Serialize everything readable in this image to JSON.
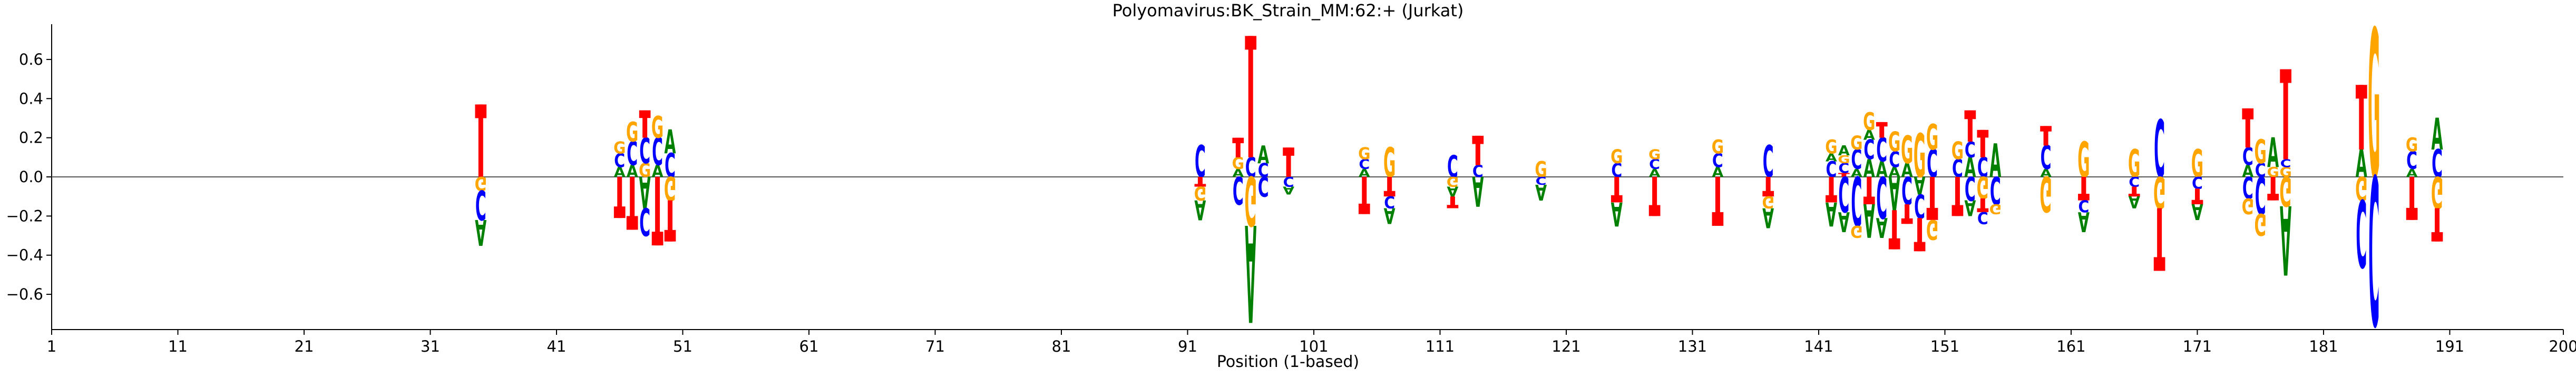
{
  "chart_data": {
    "type": "sequence-logo",
    "title": "Polyomavirus:BK_Strain_MM:62:+  (Jurkat)",
    "xlabel": "Position (1-based)",
    "ylabel": "",
    "xlim": [
      1,
      200
    ],
    "ylim": [
      -0.78,
      0.78
    ],
    "x_ticks": [
      1,
      11,
      21,
      31,
      41,
      51,
      61,
      71,
      81,
      91,
      101,
      111,
      121,
      131,
      141,
      151,
      161,
      171,
      181,
      191,
      200
    ],
    "y_ticks": [
      -0.6,
      -0.4,
      -0.2,
      0.0,
      0.2,
      0.4,
      0.6
    ],
    "y_tick_labels": [
      "−0.6",
      "−0.4",
      "−0.2",
      "0.0",
      "0.2",
      "0.4",
      "0.6"
    ],
    "colors": {
      "A": "#008000",
      "C": "#0000ff",
      "G": "#ffa500",
      "T": "#ff0000"
    },
    "positions": [
      {
        "x": 35,
        "up": [
          [
            "T",
            0.37
          ]
        ],
        "down": [
          [
            "G",
            0.07
          ],
          [
            "C",
            0.15
          ],
          [
            "A",
            0.13
          ]
        ]
      },
      {
        "x": 46,
        "up": [
          [
            "A",
            0.05
          ],
          [
            "C",
            0.07
          ],
          [
            "G",
            0.06
          ]
        ],
        "down": [
          [
            "T",
            0.21
          ]
        ]
      },
      {
        "x": 47,
        "up": [
          [
            "A",
            0.06
          ],
          [
            "C",
            0.12
          ],
          [
            "G",
            0.1
          ]
        ],
        "down": [
          [
            "T",
            0.27
          ]
        ]
      },
      {
        "x": 48,
        "up": [
          [
            "G",
            0.07
          ],
          [
            "C",
            0.13
          ],
          [
            "T",
            0.14
          ]
        ],
        "down": [
          [
            "A",
            0.16
          ],
          [
            "C",
            0.14
          ]
        ]
      },
      {
        "x": 49,
        "up": [
          [
            "A",
            0.06
          ],
          [
            "C",
            0.14
          ],
          [
            "G",
            0.11
          ]
        ],
        "down": [
          [
            "T",
            0.35
          ]
        ]
      },
      {
        "x": 50,
        "up": [
          [
            "C",
            0.12
          ],
          [
            "A",
            0.12
          ]
        ],
        "down": [
          [
            "G",
            0.12
          ],
          [
            "T",
            0.21
          ]
        ]
      },
      {
        "x": 92,
        "up": [
          [
            "C",
            0.16
          ]
        ],
        "down": [
          [
            "T",
            0.05
          ],
          [
            "G",
            0.07
          ],
          [
            "A",
            0.1
          ]
        ]
      },
      {
        "x": 95,
        "up": [
          [
            "A",
            0.04
          ],
          [
            "G",
            0.06
          ],
          [
            "T",
            0.1
          ]
        ],
        "down": [
          [
            "C",
            0.14
          ]
        ]
      },
      {
        "x": 96,
        "up": [
          [
            "C",
            0.1
          ],
          [
            "T",
            0.62
          ]
        ],
        "down": [
          [
            "G",
            0.25
          ],
          [
            "A",
            0.49
          ]
        ]
      },
      {
        "x": 97,
        "up": [
          [
            "C",
            0.07
          ],
          [
            "A",
            0.09
          ]
        ],
        "down": [
          [
            "C",
            0.1
          ]
        ]
      },
      {
        "x": 99,
        "up": [
          [
            "T",
            0.15
          ]
        ],
        "down": [
          [
            "C",
            0.05
          ],
          [
            "A",
            0.04
          ]
        ]
      },
      {
        "x": 105,
        "up": [
          [
            "A",
            0.04
          ],
          [
            "C",
            0.05
          ],
          [
            "G",
            0.06
          ]
        ],
        "down": [
          [
            "T",
            0.19
          ]
        ]
      },
      {
        "x": 107,
        "up": [
          [
            "G",
            0.15
          ]
        ],
        "down": [
          [
            "T",
            0.1
          ],
          [
            "C",
            0.06
          ],
          [
            "A",
            0.08
          ]
        ]
      },
      {
        "x": 112,
        "up": [
          [
            "C",
            0.11
          ]
        ],
        "down": [
          [
            "G",
            0.05
          ],
          [
            "A",
            0.05
          ],
          [
            "T",
            0.06
          ]
        ]
      },
      {
        "x": 114,
        "up": [
          [
            "C",
            0.06
          ],
          [
            "T",
            0.15
          ]
        ],
        "down": [
          [
            "A",
            0.15
          ]
        ]
      },
      {
        "x": 119,
        "up": [
          [
            "G",
            0.08
          ]
        ],
        "down": [
          [
            "C",
            0.04
          ],
          [
            "A",
            0.08
          ]
        ]
      },
      {
        "x": 125,
        "up": [
          [
            "C",
            0.07
          ],
          [
            "G",
            0.07
          ]
        ],
        "down": [
          [
            "T",
            0.13
          ],
          [
            "A",
            0.12
          ]
        ]
      },
      {
        "x": 128,
        "up": [
          [
            "A",
            0.04
          ],
          [
            "C",
            0.05
          ],
          [
            "G",
            0.05
          ]
        ],
        "down": [
          [
            "T",
            0.2
          ]
        ]
      },
      {
        "x": 133,
        "up": [
          [
            "A",
            0.05
          ],
          [
            "C",
            0.07
          ],
          [
            "G",
            0.07
          ]
        ],
        "down": [
          [
            "T",
            0.25
          ]
        ]
      },
      {
        "x": 137,
        "up": [
          [
            "C",
            0.16
          ]
        ],
        "down": [
          [
            "T",
            0.1
          ],
          [
            "G",
            0.06
          ],
          [
            "A",
            0.1
          ]
        ]
      },
      {
        "x": 142,
        "up": [
          [
            "C",
            0.08
          ],
          [
            "A",
            0.04
          ],
          [
            "G",
            0.07
          ]
        ],
        "down": [
          [
            "T",
            0.13
          ],
          [
            "A",
            0.12
          ]
        ]
      },
      {
        "x": 143,
        "up": [
          [
            "T",
            0.02
          ],
          [
            "C",
            0.05
          ],
          [
            "G",
            0.04
          ],
          [
            "A",
            0.05
          ]
        ],
        "down": [
          [
            "C",
            0.18
          ],
          [
            "A",
            0.1
          ]
        ]
      },
      {
        "x": 144,
        "up": [
          [
            "A",
            0.04
          ],
          [
            "C",
            0.1
          ],
          [
            "G",
            0.07
          ]
        ],
        "down": [
          [
            "C",
            0.25
          ],
          [
            "G",
            0.06
          ]
        ]
      },
      {
        "x": 145,
        "up": [
          [
            "A",
            0.09
          ],
          [
            "C",
            0.1
          ],
          [
            "A",
            0.05
          ],
          [
            "G",
            0.09
          ]
        ],
        "down": [
          [
            "T",
            0.14
          ],
          [
            "A",
            0.17
          ]
        ]
      },
      {
        "x": 146,
        "up": [
          [
            "A",
            0.08
          ],
          [
            "C",
            0.12
          ],
          [
            "T",
            0.08
          ]
        ],
        "down": [
          [
            "C",
            0.21
          ],
          [
            "A",
            0.1
          ]
        ]
      },
      {
        "x": 147,
        "up": [
          [
            "A",
            0.05
          ],
          [
            "C",
            0.08
          ],
          [
            "G",
            0.1
          ]
        ],
        "down": [
          [
            "A",
            0.17
          ],
          [
            "T",
            0.2
          ]
        ]
      },
      {
        "x": 148,
        "up": [
          [
            "A",
            0.07
          ],
          [
            "G",
            0.14
          ]
        ],
        "down": [
          [
            "C",
            0.14
          ],
          [
            "T",
            0.1
          ]
        ]
      },
      {
        "x": 149,
        "up": [
          [
            "G",
            0.22
          ]
        ],
        "down": [
          [
            "A",
            0.09
          ],
          [
            "C",
            0.12
          ],
          [
            "T",
            0.17
          ]
        ]
      },
      {
        "x": 150,
        "up": [
          [
            "C",
            0.14
          ],
          [
            "G",
            0.13
          ]
        ],
        "down": [
          [
            "T",
            0.22
          ],
          [
            "G",
            0.1
          ]
        ]
      },
      {
        "x": 152,
        "up": [
          [
            "C",
            0.09
          ],
          [
            "G",
            0.09
          ]
        ],
        "down": [
          [
            "T",
            0.2
          ]
        ]
      },
      {
        "x": 153,
        "up": [
          [
            "A",
            0.1
          ],
          [
            "C",
            0.08
          ],
          [
            "T",
            0.16
          ]
        ],
        "down": [
          [
            "C",
            0.12
          ],
          [
            "A",
            0.08
          ]
        ]
      },
      {
        "x": 154,
        "up": [
          [
            "C",
            0.1
          ],
          [
            "T",
            0.14
          ]
        ],
        "down": [
          [
            "G",
            0.11
          ],
          [
            "T",
            0.07
          ],
          [
            "C",
            0.06
          ]
        ]
      },
      {
        "x": 155,
        "up": [
          [
            "A",
            0.17
          ]
        ],
        "down": [
          [
            "C",
            0.14
          ],
          [
            "G",
            0.05
          ]
        ]
      },
      {
        "x": 159,
        "up": [
          [
            "A",
            0.04
          ],
          [
            "C",
            0.12
          ],
          [
            "T",
            0.1
          ]
        ],
        "down": [
          [
            "G",
            0.18
          ]
        ]
      },
      {
        "x": 162,
        "up": [
          [
            "G",
            0.18
          ]
        ],
        "down": [
          [
            "T",
            0.12
          ],
          [
            "C",
            0.06
          ],
          [
            "A",
            0.1
          ]
        ]
      },
      {
        "x": 166,
        "up": [
          [
            "G",
            0.14
          ]
        ],
        "down": [
          [
            "C",
            0.05
          ],
          [
            "T",
            0.05
          ],
          [
            "A",
            0.06
          ]
        ]
      },
      {
        "x": 168,
        "up": [
          [
            "C",
            0.29
          ]
        ],
        "down": [
          [
            "G",
            0.16
          ],
          [
            "T",
            0.32
          ]
        ]
      },
      {
        "x": 171,
        "up": [
          [
            "G",
            0.14
          ]
        ],
        "down": [
          [
            "C",
            0.06
          ],
          [
            "T",
            0.08
          ],
          [
            "A",
            0.08
          ]
        ]
      },
      {
        "x": 175,
        "up": [
          [
            "A",
            0.06
          ],
          [
            "C",
            0.09
          ],
          [
            "T",
            0.2
          ]
        ],
        "down": [
          [
            "C",
            0.11
          ],
          [
            "G",
            0.08
          ]
        ]
      },
      {
        "x": 176,
        "up": [
          [
            "C",
            0.07
          ],
          [
            "G",
            0.12
          ]
        ],
        "down": [
          [
            "C",
            0.19
          ],
          [
            "G",
            0.11
          ]
        ]
      },
      {
        "x": 177,
        "up": [
          [
            "G",
            0.05
          ],
          [
            "A",
            0.15
          ]
        ],
        "down": [
          [
            "T",
            0.12
          ]
        ]
      },
      {
        "x": 178,
        "up": [
          [
            "G",
            0.05
          ],
          [
            "C",
            0.04
          ],
          [
            "T",
            0.46
          ]
        ],
        "down": [
          [
            "G",
            0.15
          ],
          [
            "A",
            0.35
          ]
        ]
      },
      {
        "x": 184,
        "up": [
          [
            "A",
            0.14
          ],
          [
            "T",
            0.33
          ]
        ],
        "down": [
          [
            "G",
            0.12
          ],
          [
            "C",
            0.34
          ]
        ]
      },
      {
        "x": 185,
        "up": [
          [
            "G",
            0.75
          ]
        ],
        "down": [
          [
            "C",
            0.75
          ]
        ]
      },
      {
        "x": 188,
        "up": [
          [
            "A",
            0.04
          ],
          [
            "C",
            0.09
          ],
          [
            "G",
            0.07
          ]
        ],
        "down": [
          [
            "T",
            0.22
          ]
        ]
      },
      {
        "x": 190,
        "up": [
          [
            "C",
            0.14
          ],
          [
            "A",
            0.16
          ]
        ],
        "down": [
          [
            "G",
            0.16
          ],
          [
            "T",
            0.17
          ]
        ]
      }
    ]
  }
}
